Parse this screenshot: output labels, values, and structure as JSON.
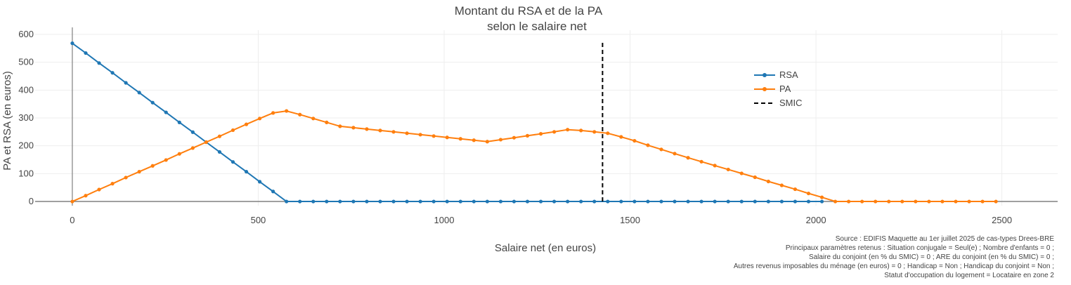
{
  "chart_data": {
    "type": "line",
    "title_lines": [
      "Montant du RSA et de la PA",
      "selon le salaire net"
    ],
    "xlabel": "Salaire net (en euros)",
    "ylabel": "PA et RSA (en euros)",
    "xlim": [
      -100,
      2650
    ],
    "ylim": [
      -15,
      615
    ],
    "xticks": [
      0,
      500,
      1000,
      1500,
      2000,
      2500
    ],
    "xtick_labels": [
      "0",
      "500",
      "1000",
      "1500",
      "2000",
      "2500"
    ],
    "yticks": [
      0,
      100,
      200,
      300,
      400,
      500,
      600
    ],
    "ytick_labels": [
      "0",
      "100",
      "200",
      "300",
      "400",
      "500",
      "600"
    ],
    "grid": true,
    "legend_position": "upper-right inside plot",
    "series": [
      {
        "name": "RSA",
        "color": "#1f77b4",
        "x": [
          0,
          36,
          72,
          108,
          144,
          180,
          216,
          252,
          288,
          324,
          360,
          396,
          432,
          468,
          504,
          540,
          576,
          612,
          648,
          684,
          720,
          756,
          792,
          828,
          864,
          900,
          936,
          972,
          1008,
          1044,
          1080,
          1116,
          1152,
          1188,
          1224,
          1260,
          1296,
          1332,
          1368,
          1404,
          1440,
          1476,
          1512,
          1548,
          1584,
          1620,
          1656,
          1692,
          1728,
          1764,
          1800,
          1836,
          1872,
          1908,
          1944,
          1980,
          2016
        ],
        "y": [
          568,
          533,
          497,
          462,
          426,
          391,
          355,
          320,
          284,
          249,
          213,
          178,
          142,
          107,
          71,
          36,
          0,
          0,
          0,
          0,
          0,
          0,
          0,
          0,
          0,
          0,
          0,
          0,
          0,
          0,
          0,
          0,
          0,
          0,
          0,
          0,
          0,
          0,
          0,
          0,
          0,
          0,
          0,
          0,
          0,
          0,
          0,
          0,
          0,
          0,
          0,
          0,
          0,
          0,
          0,
          0,
          0
        ]
      },
      {
        "name": "PA",
        "color": "#ff7f0e",
        "x": [
          0,
          36,
          72,
          108,
          144,
          180,
          216,
          252,
          288,
          324,
          360,
          396,
          432,
          468,
          504,
          540,
          576,
          612,
          648,
          684,
          720,
          756,
          792,
          828,
          864,
          900,
          936,
          972,
          1008,
          1044,
          1080,
          1116,
          1152,
          1188,
          1224,
          1260,
          1296,
          1332,
          1368,
          1404,
          1440,
          1476,
          1512,
          1548,
          1584,
          1620,
          1656,
          1692,
          1728,
          1764,
          1800,
          1836,
          1872,
          1908,
          1944,
          1980,
          2016,
          2052,
          2088,
          2124,
          2160,
          2196,
          2232,
          2268,
          2304,
          2340,
          2376,
          2412,
          2448,
          2484
        ],
        "y": [
          0,
          21,
          43,
          64,
          86,
          107,
          128,
          149,
          171,
          192,
          213,
          234,
          256,
          277,
          298,
          318,
          325,
          312,
          298,
          284,
          270,
          265,
          260,
          255,
          250,
          245,
          240,
          235,
          230,
          225,
          220,
          215,
          222,
          229,
          236,
          243,
          250,
          258,
          255,
          250,
          245,
          232,
          218,
          202,
          187,
          172,
          157,
          143,
          129,
          115,
          101,
          87,
          72,
          58,
          44,
          29,
          15,
          0,
          0,
          0,
          0,
          0,
          0,
          0,
          0,
          0,
          0,
          0,
          0,
          0
        ]
      },
      {
        "name": "SMIC",
        "color": "#000000",
        "style": "dashed",
        "x": [
          1426,
          1426
        ],
        "y": [
          0,
          570
        ]
      }
    ],
    "source_lines": [
      "Source : EDIFIS Maquette au 1er juillet 2025 de cas-types Drees-BRE",
      "Principaux paramètres retenus : Situation conjugale = Seul(e) ; Nombre d'enfants = 0 ;",
      "Salaire du conjoint (en % du SMIC) = 0 ; ARE du conjoint (en % du SMIC) = 0 ;",
      "Autres revenus imposables du ménage (en euros) = 0 ; Handicap = Non ; Handicap du conjoint = Non ;",
      "Statut d'occupation du logement = Locataire en zone 2"
    ],
    "colors": {
      "grid": "#eeeeee",
      "axis": "#808080"
    }
  }
}
